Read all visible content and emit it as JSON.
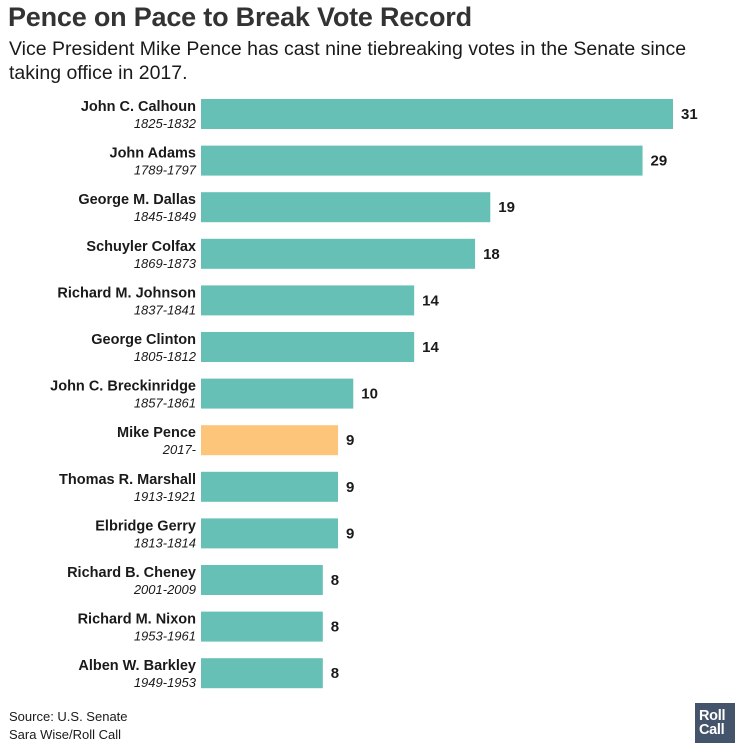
{
  "header": {
    "title": "Pence on Pace to Break Vote Record",
    "subtitle": "Vice President Mike Pence has cast nine tiebreaking votes in the Senate since taking office in 2017."
  },
  "chart_data": {
    "type": "bar",
    "orientation": "horizontal",
    "categories": [
      "John C. Calhoun",
      "John Adams",
      "George M. Dallas",
      "Schuyler Colfax",
      "Richard M. Johnson",
      "George Clinton",
      "John C. Breckinridge",
      "Mike Pence",
      "Thomas R. Marshall",
      "Elbridge Gerry",
      "Richard B. Cheney",
      "Richard M. Nixon",
      "Alben W. Barkley"
    ],
    "years": [
      "1825-1832",
      "1789-1797",
      "1845-1849",
      "1869-1873",
      "1837-1841",
      "1805-1812",
      "1857-1861",
      "2017-",
      "1913-1921",
      "1813-1814",
      "2001-2009",
      "1953-1961",
      "1949-1953"
    ],
    "values": [
      31,
      29,
      19,
      18,
      14,
      14,
      10,
      9,
      9,
      9,
      8,
      8,
      8
    ],
    "highlight": "Mike Pence",
    "xlim": [
      0,
      31
    ],
    "grid": false,
    "colors": {
      "bar": "#66c0b5",
      "highlight": "#fcc57a",
      "text": "#1a1a1a"
    }
  },
  "footer": {
    "source": "Source: U.S. Senate",
    "credit": "Sara Wise/Roll Call"
  },
  "logo": {
    "line1": "Roll",
    "line2": "Call"
  }
}
